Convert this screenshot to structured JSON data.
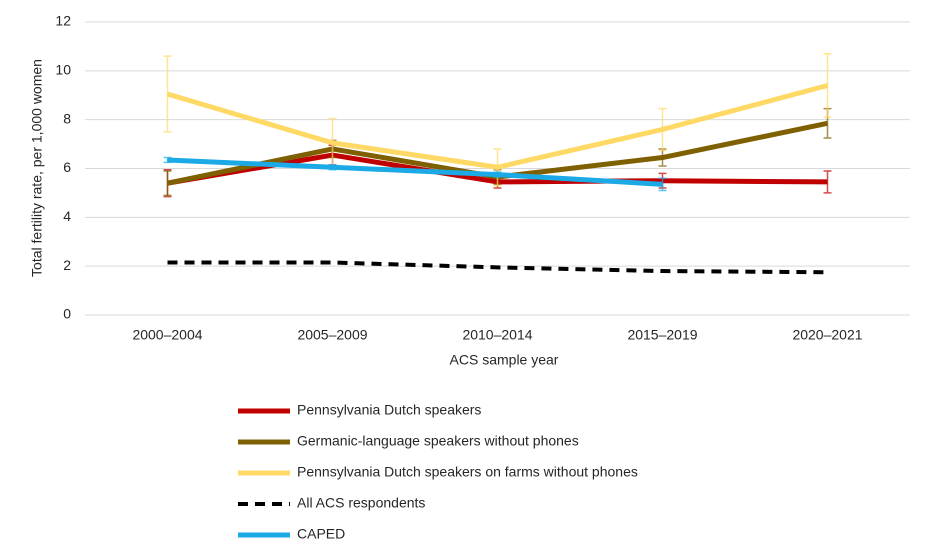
{
  "chart_data": {
    "type": "line",
    "x_label": "ACS sample year",
    "y_label": "Total  fertility rate, per 1,000 women",
    "categories": [
      "2000–2004",
      "2005–2009",
      "2010–2014",
      "2015–2019",
      "2020–2021"
    ],
    "ylim": [
      0,
      12
    ],
    "yticks": [
      0,
      2,
      4,
      6,
      8,
      10,
      12
    ],
    "grid": true,
    "legend": "bottom",
    "series": [
      {
        "name": "Pennsylvania Dutch speakers",
        "color": "#c00000",
        "values": [
          5.4,
          6.55,
          5.45,
          5.5,
          5.45
        ],
        "errors": [
          0.55,
          0.4,
          0.25,
          0.3,
          0.45
        ]
      },
      {
        "name": "Germanic-language speakers without phones",
        "color": "#7f6000",
        "values": [
          5.4,
          6.8,
          5.65,
          6.45,
          7.85
        ],
        "errors": [
          0.5,
          0.35,
          0.3,
          0.35,
          0.6
        ]
      },
      {
        "name": "Pennsylvania Dutch speakers on farms without phones",
        "color": "#ffd966",
        "values": [
          9.05,
          7.05,
          6.05,
          7.6,
          9.4
        ],
        "errors": [
          1.55,
          1.0,
          0.75,
          0.85,
          1.3
        ]
      },
      {
        "name": "All ACS respondents",
        "color": "#000000",
        "dashed": true,
        "values": [
          2.15,
          2.15,
          1.95,
          1.8,
          1.75
        ]
      },
      {
        "name": "CAPED",
        "color": "#1caae6",
        "values": [
          6.35,
          6.05,
          5.75,
          5.35,
          null
        ],
        "errors": [
          0.1,
          0.1,
          0.1,
          0.25,
          null
        ]
      }
    ]
  }
}
